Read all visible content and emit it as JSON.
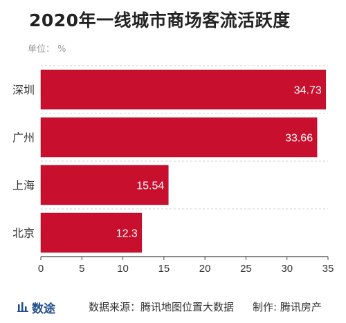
{
  "title": "2020年一线城市商场客流活跃度",
  "unit_label": "单位： %",
  "colors": {
    "bar": "#c8102e",
    "bar_edge": "#9e0c23",
    "logo": "#1f4c8a"
  },
  "chart_data": {
    "type": "bar",
    "orientation": "horizontal",
    "title": "2020年一线城市商场客流活跃度",
    "categories": [
      "深圳",
      "广州",
      "上海",
      "北京"
    ],
    "values": [
      34.73,
      33.66,
      15.54,
      12.3
    ],
    "value_labels": [
      "34.73",
      "33.66",
      "15.54",
      "12.3"
    ],
    "xlim": [
      0,
      35
    ],
    "xticks": [
      0,
      5,
      10,
      15,
      20,
      25,
      30,
      35
    ],
    "grid": "dashed-horizontal",
    "legend": "none"
  },
  "footer": {
    "logo_text": "数途",
    "logo_icon": "bar-chart-icon",
    "source": "数据来源：腾讯地图位置大数据",
    "producer": "制作: 腾讯房产"
  }
}
